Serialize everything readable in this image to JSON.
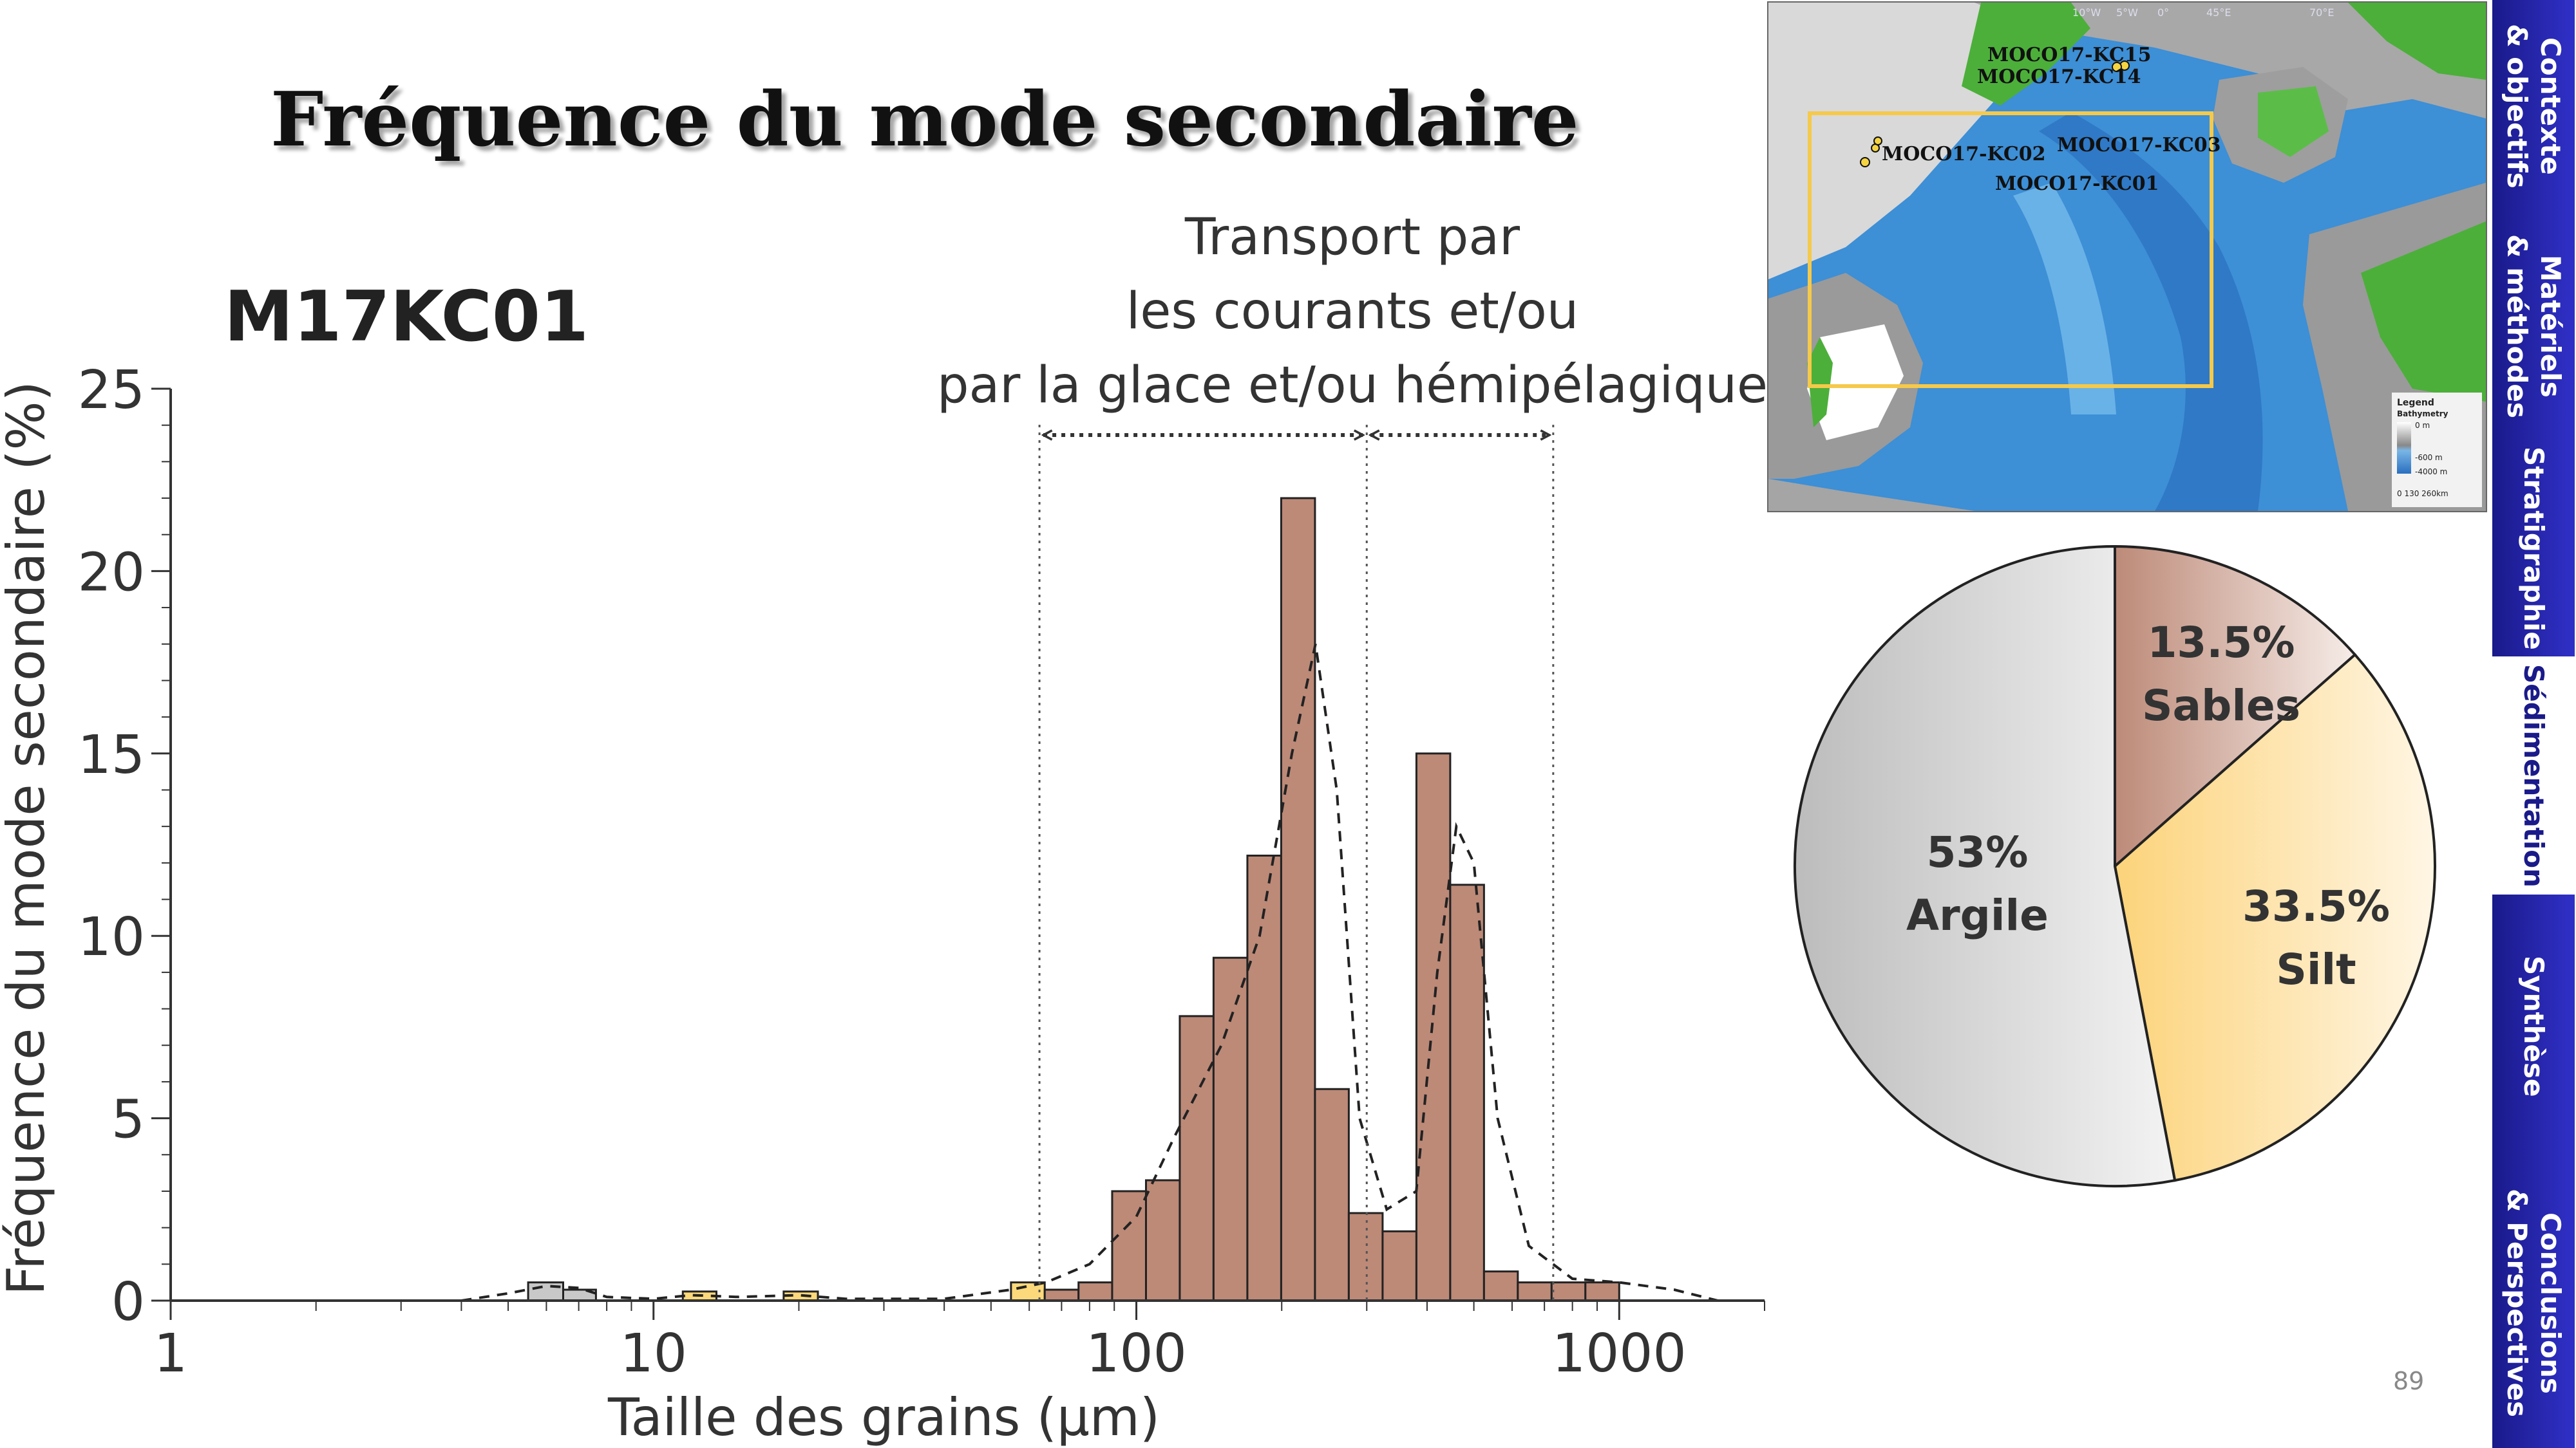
{
  "title": "Fréquence du mode secondaire",
  "core_label": "M17KC01",
  "transport_annotation": [
    "Transport par",
    "les courants et/ou",
    "par la glace et/ou hémipélagique"
  ],
  "page_number": "89",
  "colors": {
    "sand": "#bd8a78",
    "silt": "#fcd97a",
    "clay": "#c8c8c8",
    "nav": "#2a2ab0",
    "map_box": "#f5c94a"
  },
  "navigation": [
    {
      "label": "Contexte\n& objectifs",
      "active": false
    },
    {
      "label": "Matériels\n& méthodes",
      "active": false
    },
    {
      "label": "Stratigraphie",
      "active": false
    },
    {
      "label": "Sédimentation",
      "active": true
    },
    {
      "label": "Synthèse",
      "active": false
    },
    {
      "label": "Conclusions\n& Perspectives",
      "active": false
    }
  ],
  "map": {
    "cores": [
      "MOCO17-KC15",
      "MOCO17-KC14",
      "MOCO17-KC02",
      "MOCO17-KC03",
      "MOCO17-KC01"
    ],
    "legend_title": "Legend",
    "legend_subtitle": "Bathymetry",
    "legend_ticks": [
      "0 m",
      "-600 m",
      "-4000 m"
    ],
    "scale": "0   130   260km",
    "graticule": [
      "10°W",
      "5°W",
      "0°",
      "45°E",
      "70°E"
    ]
  },
  "chart_data": [
    {
      "type": "bar",
      "title": "M17KC01",
      "xlabel": "Taille des grains (µm)",
      "ylabel": "Fréquence du mode secondaire (%)",
      "xscale": "log",
      "xlim": [
        1,
        2000
      ],
      "ylim": [
        0,
        25
      ],
      "xticks": [
        1,
        10,
        100,
        1000
      ],
      "yticks": [
        0,
        5,
        10,
        15,
        20,
        25
      ],
      "bins": [
        {
          "from": 5.5,
          "to": 6.5,
          "value": 0.5,
          "class": "clay"
        },
        {
          "from": 6.5,
          "to": 7.6,
          "value": 0.3,
          "class": "clay"
        },
        {
          "from": 11.5,
          "to": 13.5,
          "value": 0.25,
          "class": "silt"
        },
        {
          "from": 18.6,
          "to": 21.9,
          "value": 0.25,
          "class": "silt"
        },
        {
          "from": 55.0,
          "to": 64.6,
          "value": 0.5,
          "class": "silt"
        },
        {
          "from": 64.6,
          "to": 75.9,
          "value": 0.3,
          "class": "sand"
        },
        {
          "from": 75.9,
          "to": 89.1,
          "value": 0.5,
          "class": "sand"
        },
        {
          "from": 89.1,
          "to": 104.7,
          "value": 3.0,
          "class": "sand"
        },
        {
          "from": 104.7,
          "to": 123.0,
          "value": 3.3,
          "class": "sand"
        },
        {
          "from": 123.0,
          "to": 144.5,
          "value": 7.8,
          "class": "sand"
        },
        {
          "from": 144.5,
          "to": 169.8,
          "value": 9.4,
          "class": "sand"
        },
        {
          "from": 169.8,
          "to": 199.5,
          "value": 12.2,
          "class": "sand"
        },
        {
          "from": 199.5,
          "to": 234.4,
          "value": 22.0,
          "class": "sand"
        },
        {
          "from": 234.4,
          "to": 275.4,
          "value": 5.8,
          "class": "sand"
        },
        {
          "from": 275.4,
          "to": 323.6,
          "value": 2.4,
          "class": "sand"
        },
        {
          "from": 323.6,
          "to": 380.2,
          "value": 1.9,
          "class": "sand"
        },
        {
          "from": 380.2,
          "to": 446.7,
          "value": 15.0,
          "class": "sand"
        },
        {
          "from": 446.7,
          "to": 524.8,
          "value": 11.4,
          "class": "sand"
        },
        {
          "from": 524.8,
          "to": 616.6,
          "value": 0.8,
          "class": "sand"
        },
        {
          "from": 616.6,
          "to": 724.4,
          "value": 0.5,
          "class": "sand"
        },
        {
          "from": 724.4,
          "to": 851.1,
          "value": 0.5,
          "class": "sand"
        },
        {
          "from": 851.1,
          "to": 1000.0,
          "value": 0.5,
          "class": "sand"
        }
      ],
      "density_curve": {
        "x": [
          4,
          5,
          6,
          7,
          8,
          10,
          12,
          15,
          20,
          25,
          40,
          55,
          65,
          80,
          100,
          120,
          150,
          180,
          210,
          235,
          260,
          290,
          330,
          380,
          420,
          460,
          500,
          560,
          650,
          800,
          1000,
          1300,
          1600
        ],
        "y": [
          0,
          0.2,
          0.4,
          0.35,
          0.1,
          0.05,
          0.15,
          0.1,
          0.15,
          0.05,
          0.05,
          0.3,
          0.5,
          1.0,
          2.3,
          4.5,
          7.0,
          10.0,
          15.0,
          18.0,
          14.0,
          5.0,
          2.5,
          3.0,
          9.0,
          13.0,
          12.0,
          5.0,
          1.5,
          0.6,
          0.5,
          0.3,
          0.0
        ]
      },
      "markers": [
        {
          "x": 63
        },
        {
          "x": 300
        },
        {
          "x": 730
        }
      ],
      "range_arrows": [
        {
          "from": 63,
          "to": 300
        },
        {
          "from": 300,
          "to": 730
        }
      ]
    },
    {
      "type": "pie",
      "slices": [
        {
          "label": "Sables",
          "value": 13.5,
          "text": "13.5%",
          "color": "#bd8a78"
        },
        {
          "label": "Silt",
          "value": 33.5,
          "text": "33.5%",
          "color": "#fcd97a"
        },
        {
          "label": "Argile",
          "value": 53,
          "text": "53%",
          "color": "#c8c8c8"
        }
      ]
    }
  ]
}
